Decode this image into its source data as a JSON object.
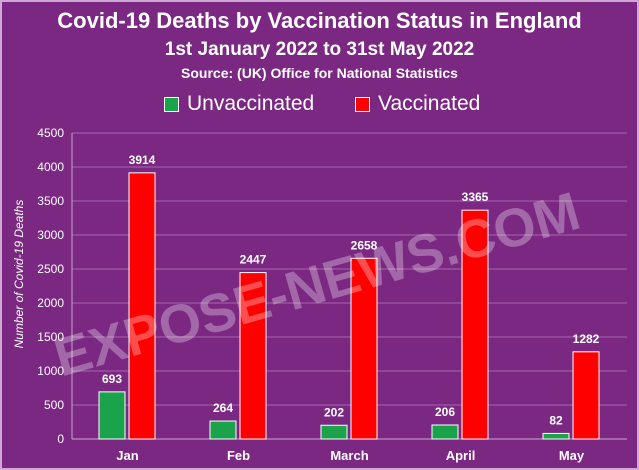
{
  "title": "Covid-19 Deaths by Vaccination Status in England",
  "subtitle": "1st January 2022 to 31st May 2022",
  "source": "Source:  (UK) Office for National Statistics",
  "watermark": "EXPOSE-NEWS.COM",
  "colors": {
    "background": "#7b2883",
    "unvaccinated": "#1aa34a",
    "vaccinated": "#ff0000",
    "text": "#ffffff"
  },
  "chart_data": {
    "type": "bar",
    "title": "Covid-19 Deaths by Vaccination Status in England",
    "xlabel": "",
    "ylabel": "Number of Covid-19 Deaths",
    "categories": [
      "Jan",
      "Feb",
      "March",
      "April",
      "May"
    ],
    "series": [
      {
        "name": "Unvaccinated",
        "values": [
          693,
          264,
          202,
          206,
          82
        ]
      },
      {
        "name": "Vaccinated",
        "values": [
          3914,
          2447,
          2658,
          3365,
          1282
        ]
      }
    ],
    "ylim": [
      0,
      4500
    ],
    "yticks": [
      0,
      500,
      1000,
      1500,
      2000,
      2500,
      3000,
      3500,
      4000,
      4500
    ],
    "grid": true,
    "legend": "top"
  }
}
